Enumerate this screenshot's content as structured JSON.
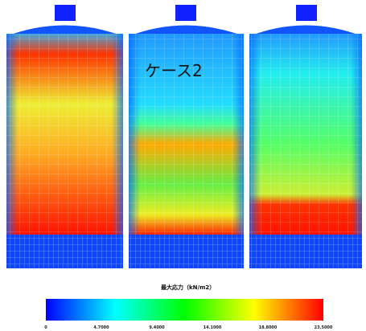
{
  "case_label": "ケース2",
  "colorbar": {
    "title": "最大応力（kN/m2）",
    "ticks": [
      "0",
      "4.7000",
      "9.4000",
      "14.1000",
      "18.8000",
      "23.5000"
    ]
  }
}
